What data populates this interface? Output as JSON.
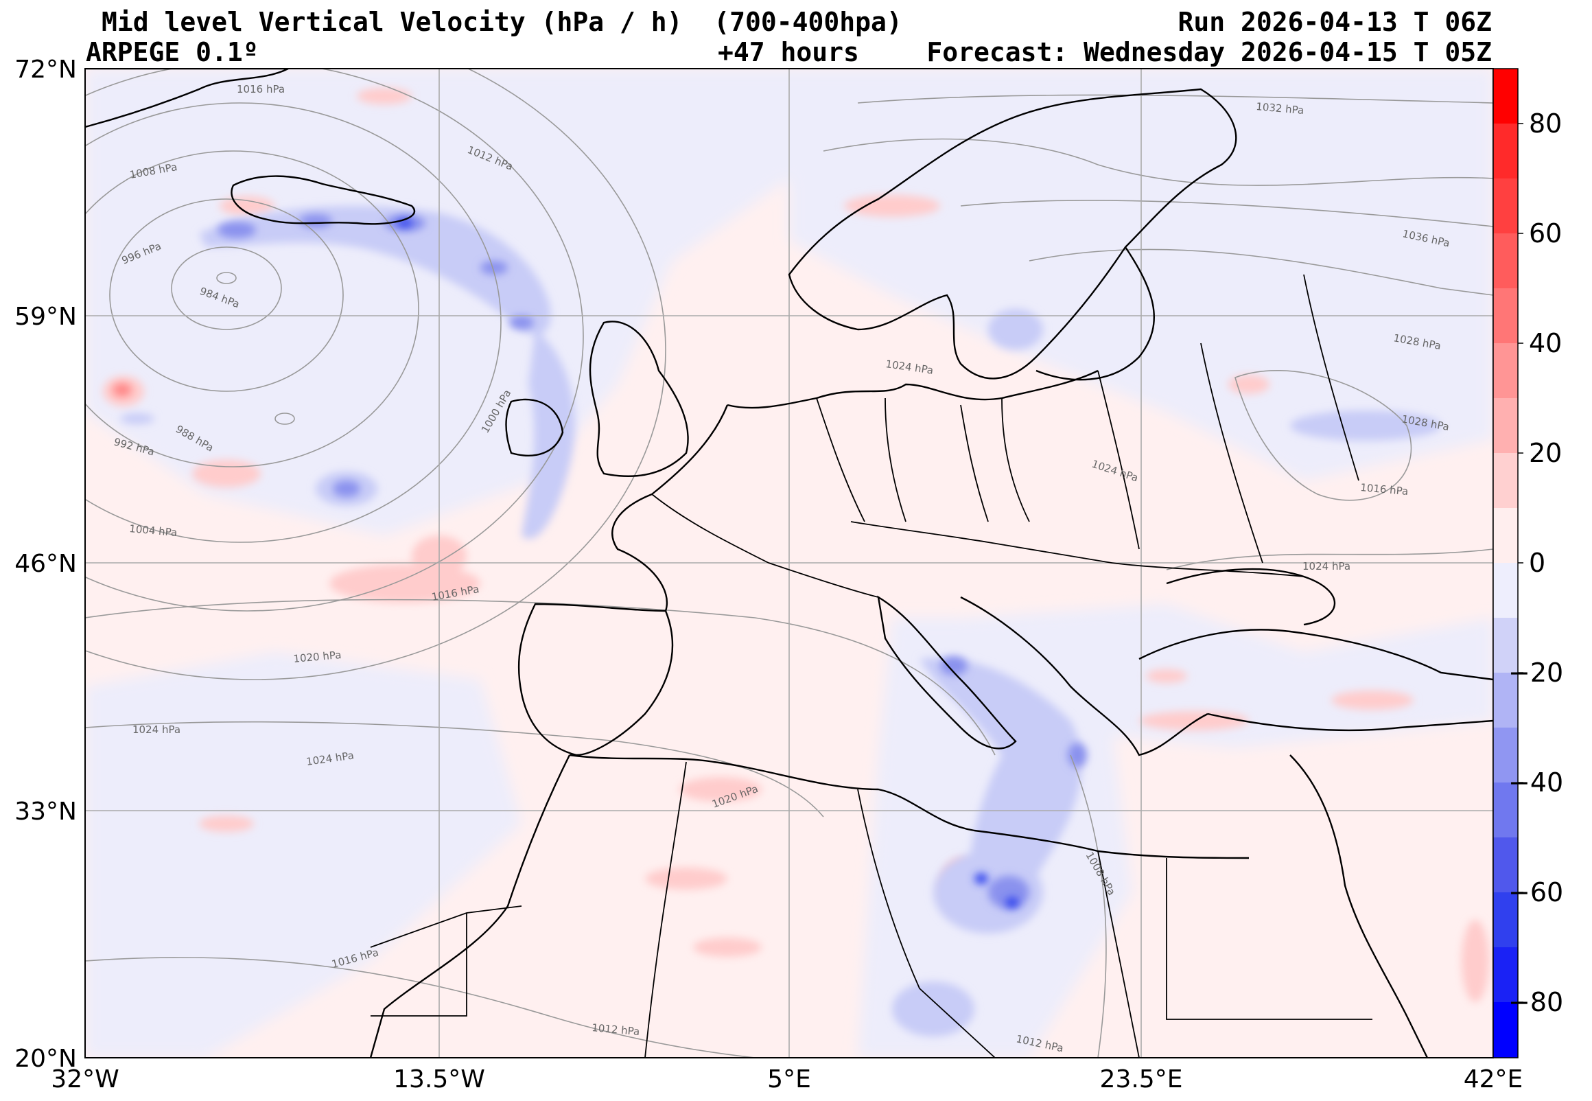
{
  "header": {
    "title": "Mid level Vertical Velocity (hPa / h)  (700-400hpa)",
    "model": "ARPEGE 0.1º",
    "lead": "+47 hours",
    "run": "Run 2026-04-13 T 06Z",
    "forecast": "Forecast: Wednesday 2026-04-15 T 05Z"
  },
  "map": {
    "lat_ticks": [
      "72°N",
      "59°N",
      "46°N",
      "33°N",
      "20°N"
    ],
    "lon_ticks": [
      "32°W",
      "13.5°W",
      "5°E",
      "23.5°E",
      "42°E"
    ],
    "isobar_labels": [
      "1016 hPa",
      "1012 hPa",
      "1008 hPa",
      "996 hPa",
      "984 hPa",
      "988 hPa",
      "992 hPa",
      "1004 hPa",
      "1000 hPa",
      "1016 hPa",
      "1020 hPa",
      "1024 hPa",
      "1024 hPa",
      "1020 hPa",
      "1016 hPa",
      "1012 hPa",
      "1024 hPa",
      "1024 hPa",
      "1036 hPa",
      "1028 hPa",
      "1028 hPa",
      "1016 hPa",
      "1024 hPa",
      "1008 hPa",
      "1012 hPa",
      "1032 hPa"
    ]
  },
  "colorbar": {
    "ticks": [
      "80",
      "60",
      "40",
      "20",
      "0",
      "−20",
      "−40",
      "−60",
      "−80"
    ],
    "top_color": "#ff0000",
    "bottom_color": "#0000ff"
  },
  "colors": {
    "ascent": "#3344ee",
    "descent": "#ff7777",
    "isobar": "#888888",
    "border": "#000000"
  }
}
